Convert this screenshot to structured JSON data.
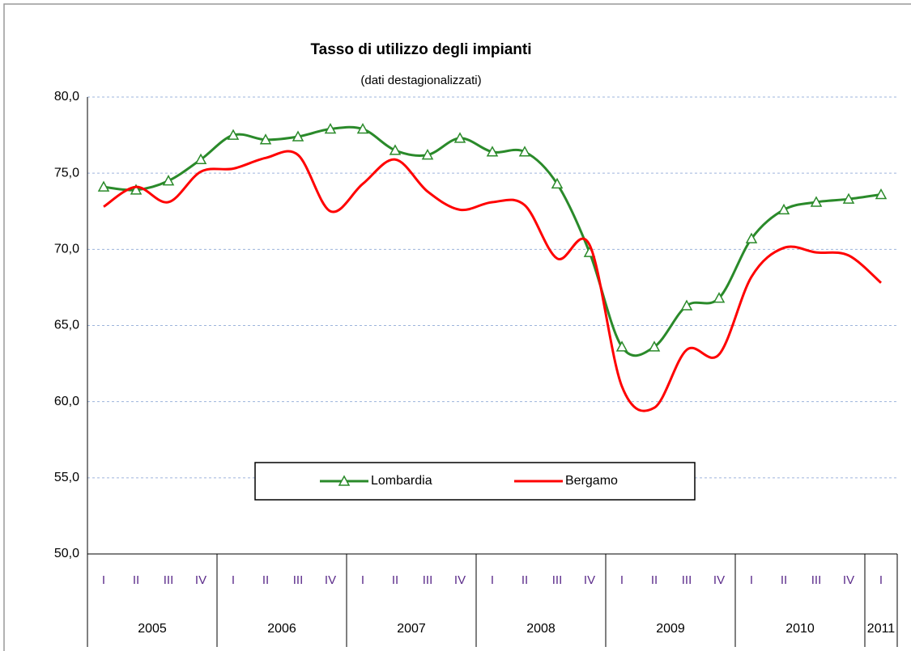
{
  "chart_data": {
    "type": "line",
    "title": "Tasso di utilizzo degli impianti",
    "subtitle": "(dati destagionalizzati)",
    "categories": [
      "I",
      "II",
      "III",
      "IV",
      "I",
      "II",
      "III",
      "IV",
      "I",
      "II",
      "III",
      "IV",
      "I",
      "II",
      "III",
      "IV",
      "I",
      "II",
      "III",
      "IV",
      "I",
      "II",
      "III",
      "IV",
      "I"
    ],
    "years": [
      "2005",
      "2006",
      "2007",
      "2008",
      "2009",
      "2010",
      "2011"
    ],
    "series": [
      {
        "name": "Lombardia",
        "color": "#2a8a2a",
        "marker": "triangle",
        "values": [
          74.1,
          73.9,
          74.5,
          75.9,
          77.5,
          77.2,
          77.4,
          77.9,
          77.9,
          76.5,
          76.2,
          77.3,
          76.4,
          76.4,
          74.3,
          69.8,
          63.6,
          63.6,
          66.3,
          66.8,
          70.7,
          72.6,
          73.1,
          73.3,
          73.6
        ]
      },
      {
        "name": "Bergamo",
        "color": "#ff0000",
        "marker": "none",
        "values": [
          72.8,
          74.1,
          73.1,
          75.1,
          75.3,
          76.0,
          76.2,
          72.5,
          74.3,
          75.9,
          73.8,
          72.6,
          73.1,
          72.9,
          69.4,
          70.3,
          61.0,
          59.6,
          63.4,
          63.1,
          68.2,
          70.1,
          69.8,
          69.6,
          67.8
        ]
      }
    ],
    "ylim": [
      50,
      80
    ],
    "yticks": [
      {
        "value": 50,
        "label": "50,0"
      },
      {
        "value": 55,
        "label": "55,0"
      },
      {
        "value": 60,
        "label": "60,0"
      },
      {
        "value": 65,
        "label": "65,0"
      },
      {
        "value": 70,
        "label": "70,0"
      },
      {
        "value": 75,
        "label": "75,0"
      },
      {
        "value": 80,
        "label": "80,0"
      }
    ],
    "grid": true
  }
}
